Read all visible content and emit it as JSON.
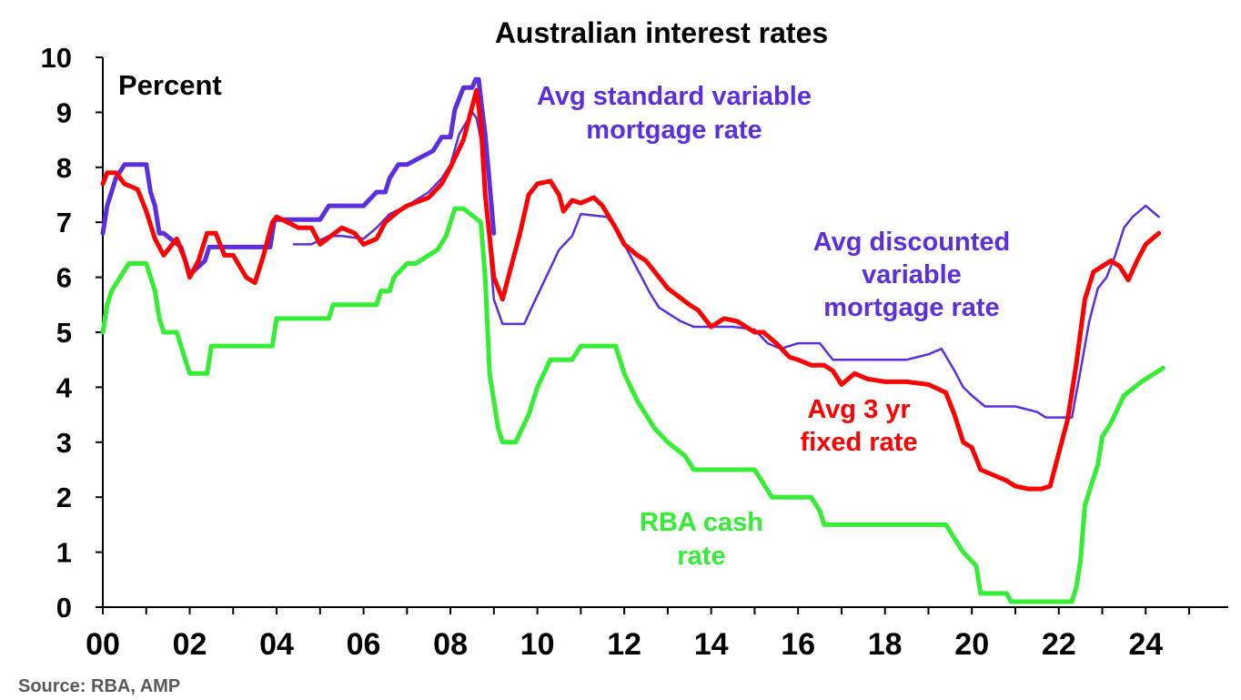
{
  "chart_data": {
    "type": "line",
    "title": "Australian interest rates",
    "units_label": "Percent",
    "source": "Source: RBA, AMP",
    "xlim": [
      2000,
      2025.9
    ],
    "ylim": [
      0,
      10
    ],
    "x_ticks": [
      {
        "value": 2000,
        "label": "00"
      },
      {
        "value": 2002,
        "label": "02"
      },
      {
        "value": 2004,
        "label": "04"
      },
      {
        "value": 2006,
        "label": "06"
      },
      {
        "value": 2008,
        "label": "08"
      },
      {
        "value": 2010,
        "label": "10"
      },
      {
        "value": 2012,
        "label": "12"
      },
      {
        "value": 2014,
        "label": "14"
      },
      {
        "value": 2016,
        "label": "16"
      },
      {
        "value": 2018,
        "label": "18"
      },
      {
        "value": 2020,
        "label": "20"
      },
      {
        "value": 2022,
        "label": "22"
      },
      {
        "value": 2024,
        "label": "24"
      }
    ],
    "y_ticks": [
      0,
      1,
      2,
      3,
      4,
      5,
      6,
      7,
      8,
      9,
      10
    ],
    "grid": false,
    "series": [
      {
        "name": "Avg standard variable mortgage rate",
        "label_lines": [
          "Avg standard variable",
          "mortgage rate"
        ],
        "color": "#5b2ee0",
        "stroke_width": 5,
        "x": [
          2000.0,
          2000.1,
          2000.3,
          2000.5,
          2000.7,
          2001.0,
          2001.1,
          2001.2,
          2001.3,
          2001.4,
          2001.8,
          2001.9,
          2002.0,
          2002.35,
          2002.45,
          2002.55,
          2003.0,
          2003.5,
          2003.85,
          2003.95,
          2004.5,
          2005.0,
          2005.2,
          2005.5,
          2006.0,
          2006.3,
          2006.5,
          2006.6,
          2006.8,
          2007.0,
          2007.6,
          2007.8,
          2008.0,
          2008.1,
          2008.3,
          2008.5,
          2008.58,
          2008.65,
          2008.72,
          2008.8,
          2008.9,
          2009.0
        ],
        "y": [
          6.8,
          7.3,
          7.8,
          8.05,
          8.05,
          8.05,
          7.55,
          7.3,
          6.8,
          6.8,
          6.55,
          6.3,
          6.05,
          6.3,
          6.55,
          6.55,
          6.55,
          6.55,
          6.55,
          7.05,
          7.05,
          7.05,
          7.3,
          7.3,
          7.3,
          7.55,
          7.55,
          7.8,
          8.05,
          8.05,
          8.3,
          8.55,
          8.55,
          9.05,
          9.45,
          9.45,
          9.6,
          9.6,
          9.1,
          8.6,
          7.7,
          6.8
        ]
      },
      {
        "name": "Avg discounted variable mortgage rate",
        "label_lines": [
          "Avg discounted",
          "variable",
          "mortgage rate"
        ],
        "color": "#5b2ee0",
        "stroke_width": 2.5,
        "x": [
          2004.4,
          2004.8,
          2005.2,
          2005.5,
          2006.0,
          2006.3,
          2006.6,
          2007.0,
          2007.5,
          2007.8,
          2008.0,
          2008.2,
          2008.5,
          2008.6,
          2008.7,
          2008.8,
          2009.0,
          2009.2,
          2009.3,
          2009.7,
          2009.9,
          2010.2,
          2010.5,
          2010.8,
          2011.0,
          2011.6,
          2011.8,
          2012.0,
          2012.2,
          2012.4,
          2012.6,
          2012.8,
          2013.0,
          2013.3,
          2013.6,
          2014.0,
          2014.5,
          2015.0,
          2015.3,
          2015.6,
          2016.0,
          2016.5,
          2016.8,
          2017.0,
          2017.5,
          2018.0,
          2018.5,
          2019.0,
          2019.3,
          2019.6,
          2019.8,
          2020.0,
          2020.3,
          2021.0,
          2021.5,
          2021.7,
          2022.0,
          2022.3,
          2022.5,
          2022.7,
          2022.9,
          2023.1,
          2023.3,
          2023.5,
          2023.7,
          2024.0,
          2024.3
        ],
        "y": [
          6.6,
          6.6,
          6.75,
          6.75,
          6.7,
          6.9,
          7.15,
          7.3,
          7.55,
          7.8,
          8.05,
          8.6,
          9.0,
          8.9,
          8.5,
          7.5,
          5.6,
          5.15,
          5.15,
          5.15,
          5.5,
          6.0,
          6.5,
          6.75,
          7.15,
          7.1,
          6.9,
          6.6,
          6.3,
          6.0,
          5.7,
          5.45,
          5.35,
          5.2,
          5.1,
          5.1,
          5.1,
          5.05,
          4.8,
          4.7,
          4.8,
          4.8,
          4.5,
          4.5,
          4.5,
          4.5,
          4.5,
          4.6,
          4.7,
          4.3,
          4.0,
          3.85,
          3.65,
          3.65,
          3.55,
          3.45,
          3.45,
          3.45,
          4.3,
          5.2,
          5.8,
          6.0,
          6.4,
          6.9,
          7.1,
          7.3,
          7.1
        ]
      },
      {
        "name": "Avg 3 yr fixed rate",
        "label_lines": [
          "Avg 3 yr",
          "fixed rate"
        ],
        "color": "#ff0000",
        "stroke_width": 5,
        "x": [
          2000.0,
          2000.1,
          2000.3,
          2000.5,
          2000.8,
          2001.0,
          2001.2,
          2001.4,
          2001.7,
          2001.9,
          2002.0,
          2002.2,
          2002.4,
          2002.6,
          2002.8,
          2003.0,
          2003.3,
          2003.5,
          2003.7,
          2003.9,
          2004.0,
          2004.5,
          2004.8,
          2005.0,
          2005.5,
          2005.8,
          2006.0,
          2006.3,
          2006.5,
          2006.8,
          2007.0,
          2007.5,
          2007.8,
          2008.0,
          2008.3,
          2008.6,
          2008.7,
          2008.8,
          2009.0,
          2009.2,
          2009.4,
          2009.6,
          2009.8,
          2010.0,
          2010.3,
          2010.5,
          2010.6,
          2010.8,
          2011.0,
          2011.3,
          2011.5,
          2011.8,
          2012.0,
          2012.3,
          2012.5,
          2012.7,
          2013.0,
          2013.5,
          2013.7,
          2014.0,
          2014.3,
          2014.6,
          2015.0,
          2015.2,
          2015.5,
          2015.8,
          2016.0,
          2016.3,
          2016.6,
          2016.8,
          2017.0,
          2017.3,
          2017.6,
          2018.0,
          2018.5,
          2019.0,
          2019.4,
          2019.6,
          2019.8,
          2020.0,
          2020.2,
          2020.5,
          2020.8,
          2021.0,
          2021.3,
          2021.6,
          2021.8,
          2022.0,
          2022.2,
          2022.4,
          2022.6,
          2022.8,
          2023.0,
          2023.2,
          2023.4,
          2023.6,
          2023.8,
          2024.0,
          2024.3
        ],
        "y": [
          7.7,
          7.9,
          7.9,
          7.7,
          7.6,
          7.2,
          6.7,
          6.4,
          6.7,
          6.3,
          6.0,
          6.3,
          6.8,
          6.8,
          6.4,
          6.4,
          6.0,
          5.9,
          6.4,
          7.0,
          7.1,
          6.9,
          6.9,
          6.6,
          6.9,
          6.8,
          6.6,
          6.7,
          7.0,
          7.2,
          7.3,
          7.45,
          7.7,
          8.0,
          8.5,
          9.4,
          8.8,
          7.5,
          6.0,
          5.6,
          6.2,
          6.8,
          7.5,
          7.7,
          7.75,
          7.5,
          7.2,
          7.4,
          7.35,
          7.45,
          7.3,
          6.9,
          6.6,
          6.4,
          6.3,
          6.1,
          5.8,
          5.5,
          5.4,
          5.1,
          5.25,
          5.2,
          5.0,
          5.0,
          4.8,
          4.55,
          4.5,
          4.4,
          4.4,
          4.3,
          4.05,
          4.25,
          4.15,
          4.1,
          4.1,
          4.05,
          3.9,
          3.5,
          3.0,
          2.9,
          2.5,
          2.4,
          2.3,
          2.2,
          2.15,
          2.15,
          2.2,
          2.8,
          3.4,
          4.4,
          5.6,
          6.1,
          6.2,
          6.3,
          6.2,
          5.95,
          6.3,
          6.6,
          6.8
        ]
      },
      {
        "name": "RBA cash rate",
        "label_lines": [
          "RBA cash",
          "rate"
        ],
        "color": "#33ee33",
        "stroke_width": 5,
        "x": [
          2000.0,
          2000.1,
          2000.2,
          2000.4,
          2000.6,
          2000.8,
          2001.0,
          2001.2,
          2001.3,
          2001.4,
          2001.7,
          2001.8,
          2001.9,
          2002.0,
          2002.4,
          2002.5,
          2003.9,
          2004.0,
          2005.2,
          2005.3,
          2006.3,
          2006.4,
          2006.6,
          2006.7,
          2007.0,
          2007.2,
          2007.7,
          2007.9,
          2008.0,
          2008.1,
          2008.3,
          2008.7,
          2008.8,
          2008.9,
          2009.1,
          2009.2,
          2009.5,
          2009.8,
          2010.0,
          2010.3,
          2010.8,
          2011.0,
          2011.8,
          2012.0,
          2012.3,
          2012.5,
          2012.7,
          2013.0,
          2013.4,
          2013.6,
          2015.0,
          2015.2,
          2015.4,
          2016.3,
          2016.5,
          2016.6,
          2019.4,
          2019.6,
          2019.8,
          2020.1,
          2020.2,
          2020.8,
          2020.9,
          2022.3,
          2022.4,
          2022.5,
          2022.6,
          2022.8,
          2022.9,
          2023.0,
          2023.2,
          2023.5,
          2023.9,
          2024.4
        ],
        "y": [
          5.0,
          5.5,
          5.75,
          6.0,
          6.25,
          6.25,
          6.25,
          5.75,
          5.25,
          5.0,
          5.0,
          4.75,
          4.5,
          4.25,
          4.25,
          4.75,
          4.75,
          5.25,
          5.25,
          5.5,
          5.5,
          5.75,
          5.75,
          6.0,
          6.25,
          6.25,
          6.5,
          6.75,
          7.0,
          7.25,
          7.25,
          7.0,
          6.0,
          4.25,
          3.25,
          3.0,
          3.0,
          3.5,
          4.0,
          4.5,
          4.5,
          4.75,
          4.75,
          4.25,
          3.75,
          3.5,
          3.25,
          3.0,
          2.75,
          2.5,
          2.5,
          2.25,
          2.0,
          2.0,
          1.75,
          1.5,
          1.5,
          1.25,
          1.0,
          0.75,
          0.25,
          0.25,
          0.1,
          0.1,
          0.35,
          0.85,
          1.85,
          2.35,
          2.6,
          3.1,
          3.35,
          3.85,
          4.1,
          4.35
        ]
      }
    ]
  }
}
